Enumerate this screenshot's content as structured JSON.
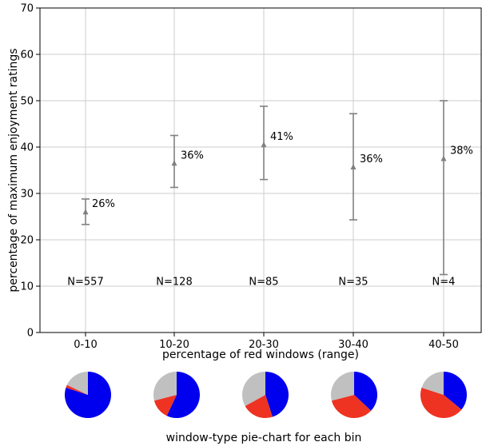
{
  "chart_data": {
    "type": "scatter",
    "xlabel": "percentage of red windows (range)",
    "ylabel": "percentage of maximum enjoyment ratings",
    "ylim": [
      0,
      70
    ],
    "yticks": [
      0,
      10,
      20,
      30,
      40,
      50,
      60,
      70
    ],
    "grid": true,
    "categories": [
      "0-10",
      "10-20",
      "20-30",
      "30-40",
      "40-50"
    ],
    "points": [
      {
        "category": "0-10",
        "value": 26,
        "label": "26%",
        "err_low": 23.3,
        "err_high": 28.8,
        "n": "N=557"
      },
      {
        "category": "10-20",
        "value": 36.5,
        "label": "36%",
        "err_low": 31.3,
        "err_high": 42.5,
        "n": "N=128"
      },
      {
        "category": "20-30",
        "value": 40.5,
        "label": "41%",
        "err_low": 33.0,
        "err_high": 48.8,
        "n": "N=85"
      },
      {
        "category": "30-40",
        "value": 35.7,
        "label": "36%",
        "err_low": 24.3,
        "err_high": 47.2,
        "n": "N=35"
      },
      {
        "category": "40-50",
        "value": 37.5,
        "label": "38%",
        "err_low": 12.5,
        "err_high": 50.0,
        "n": "N=4"
      }
    ],
    "n_label_y": 11,
    "marker_color": "#808080",
    "pie_caption": "window-type pie-chart for each bin",
    "pie_colors": {
      "blue": "#0000ee",
      "red": "#ee3322",
      "gray": "#c0c0c0"
    },
    "pies": [
      {
        "category": "0-10",
        "slices": [
          {
            "color": "blue",
            "value": 0.8
          },
          {
            "color": "red",
            "value": 0.02
          },
          {
            "color": "gray",
            "value": 0.18
          }
        ]
      },
      {
        "category": "10-20",
        "slices": [
          {
            "color": "blue",
            "value": 0.57
          },
          {
            "color": "red",
            "value": 0.14
          },
          {
            "color": "gray",
            "value": 0.29
          }
        ]
      },
      {
        "category": "20-30",
        "slices": [
          {
            "color": "blue",
            "value": 0.45
          },
          {
            "color": "red",
            "value": 0.22
          },
          {
            "color": "gray",
            "value": 0.33
          }
        ]
      },
      {
        "category": "30-40",
        "slices": [
          {
            "color": "blue",
            "value": 0.37
          },
          {
            "color": "red",
            "value": 0.34
          },
          {
            "color": "gray",
            "value": 0.29
          }
        ]
      },
      {
        "category": "40-50",
        "slices": [
          {
            "color": "blue",
            "value": 0.36
          },
          {
            "color": "red",
            "value": 0.44
          },
          {
            "color": "gray",
            "value": 0.2
          }
        ]
      }
    ]
  }
}
